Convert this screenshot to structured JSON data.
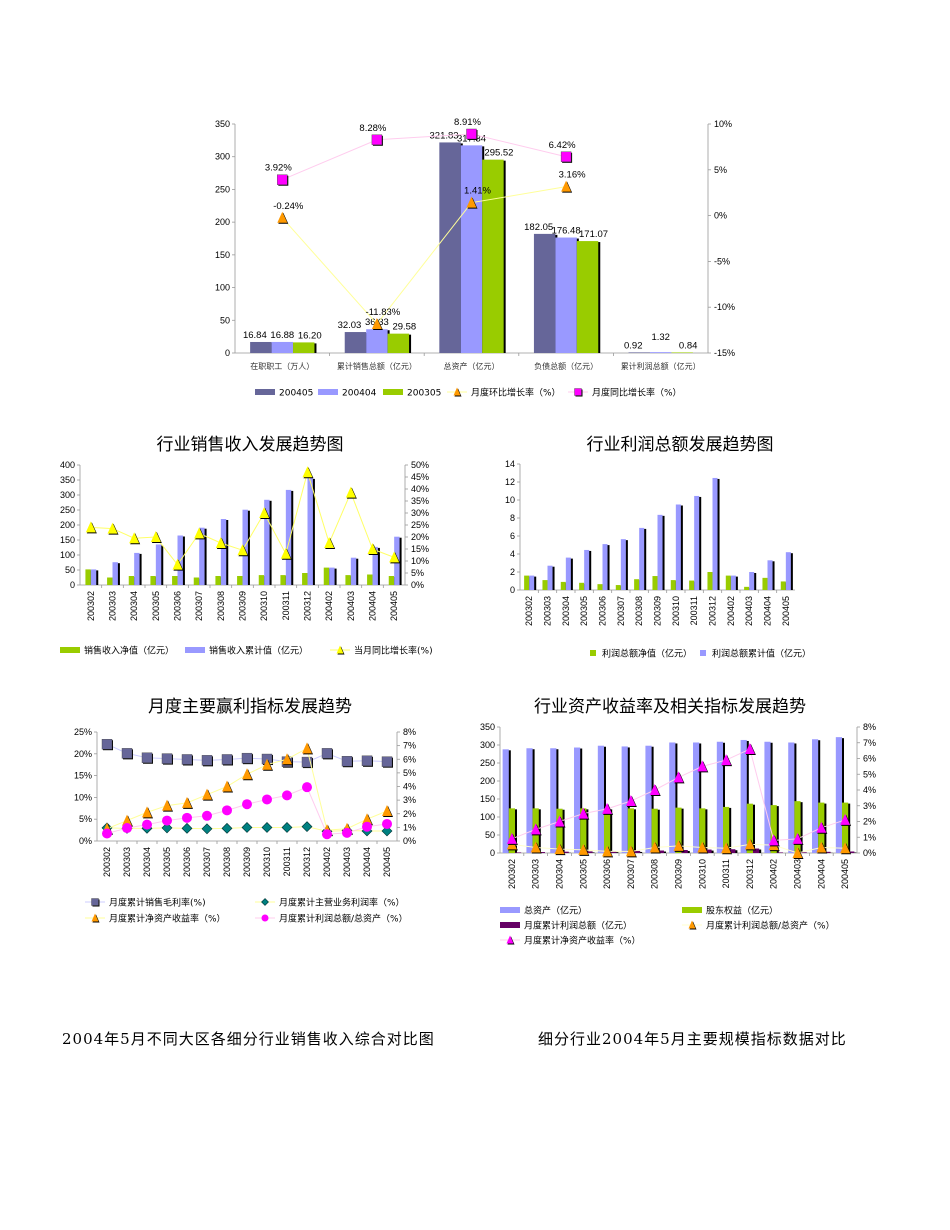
{
  "captions": {
    "left": "2004年5月不同大区各细分行业销售收入综合对比图",
    "right": "细分行业2004年5月主要规模指标数据对比"
  },
  "chart_data": [
    {
      "type": "bar",
      "title": "",
      "categories": [
        "在职职工（万人）",
        "累计销售总额（亿元）",
        "总资产（亿元）",
        "负债总额（亿元）",
        "累计利润总额（亿元）"
      ],
      "ylim": [
        0,
        350
      ],
      "yticks": [
        "0",
        "50",
        "100",
        "150",
        "200",
        "250",
        "300",
        "350"
      ],
      "y2lim": [
        -15,
        10
      ],
      "y2ticks": [
        "-15%",
        "-10%",
        "-5%",
        "0%",
        "5%",
        "10%"
      ],
      "bars": [
        {
          "name": "200405",
          "color": "#666699",
          "values": [
            16.84,
            32.03,
            321.83,
            182.05,
            0.92
          ],
          "labels": [
            "16.84",
            "32.03",
            "321.83",
            "182.05",
            "0.92"
          ]
        },
        {
          "name": "200404",
          "color": "#9999ff",
          "values": [
            16.88,
            36.33,
            317.34,
            176.48,
            1.32
          ],
          "labels": [
            "16.88",
            "36.33",
            "317.34",
            "176.48",
            "1.32"
          ]
        },
        {
          "name": "200305",
          "color": "#99cc00",
          "values": [
            16.2,
            29.58,
            295.52,
            171.07,
            0.84
          ],
          "labels": [
            "16.20",
            "29.58",
            "295.52",
            "171.07",
            "0.84"
          ]
        }
      ],
      "lines": [
        {
          "name": "月度环比增长率（%）",
          "color": "#ff9900",
          "line_color": "#ffff99",
          "marker": "triangle",
          "values": [
            -0.24,
            -11.83,
            1.41,
            3.16,
            null
          ],
          "labels": [
            "-0.24%",
            "-11.83%",
            "1.41%",
            "3.16%",
            ""
          ]
        },
        {
          "name": "月度同比增长率（%）",
          "color": "#ff00ff",
          "line_color": "#ffccee",
          "marker": "square",
          "values": [
            3.92,
            8.28,
            8.91,
            6.42,
            null
          ],
          "labels": [
            "3.92%",
            "8.28%",
            "8.91%",
            "6.42%",
            ""
          ]
        }
      ],
      "legend": "bottom"
    },
    {
      "type": "bar",
      "title": "行业销售收入发展趋势图",
      "categories": [
        "200302",
        "200303",
        "200304",
        "200305",
        "200306",
        "200307",
        "200308",
        "200309",
        "200310",
        "200311",
        "200312",
        "200402",
        "200403",
        "200404",
        "200405"
      ],
      "ylim": [
        0,
        400
      ],
      "yticks": [
        "0",
        "50",
        "100",
        "150",
        "200",
        "250",
        "300",
        "350",
        "400"
      ],
      "y2lim": [
        0,
        50
      ],
      "y2ticks": [
        "0%",
        "5%",
        "10%",
        "15%",
        "20%",
        "25%",
        "30%",
        "35%",
        "40%",
        "45%",
        "50%"
      ],
      "bars": [
        {
          "name": "销售收入净值（亿元）",
          "color": "#99cc00",
          "values": [
            52,
            25,
            30,
            30,
            30,
            25,
            30,
            30,
            33,
            33,
            40,
            58,
            33,
            35,
            30
          ]
        },
        {
          "name": "销售收入累计值（亿元）",
          "color": "#9999ff",
          "values": [
            52,
            76,
            107,
            135,
            165,
            191,
            220,
            251,
            284,
            317,
            357,
            58,
            91,
            127,
            161
          ]
        }
      ],
      "lines": [
        {
          "name": "当月同比增长率(%)",
          "color": "#ffff00",
          "line_color": "#ffff66",
          "marker": "triangle",
          "values": [
            24,
            23.5,
            19.5,
            20,
            8.5,
            21.5,
            17.5,
            14.5,
            30,
            13,
            47,
            17.5,
            38.5,
            15,
            11.5
          ]
        }
      ],
      "legend": "bottom"
    },
    {
      "type": "bar",
      "title": "行业利润总额发展趋势图",
      "categories": [
        "200302",
        "200303",
        "200304",
        "200305",
        "200306",
        "200307",
        "200308",
        "200309",
        "200310",
        "200311",
        "200312",
        "200402",
        "200403",
        "200404",
        "200405"
      ],
      "ylim": [
        0,
        14
      ],
      "yticks": [
        "0",
        "2",
        "4",
        "6",
        "8",
        "10",
        "12",
        "14"
      ],
      "bars": [
        {
          "name": "利润总额净值（亿元）",
          "color": "#99cc00",
          "values": [
            1.6,
            1.1,
            0.9,
            0.8,
            0.65,
            0.55,
            1.2,
            1.55,
            1.1,
            1.05,
            2.0,
            1.6,
            0.35,
            1.35,
            0.95
          ]
        },
        {
          "name": "利润总额累计值（亿元）",
          "color": "#9999ff",
          "values": [
            1.6,
            2.7,
            3.6,
            4.45,
            5.1,
            5.65,
            6.9,
            8.35,
            9.5,
            10.45,
            12.45,
            1.6,
            2.0,
            3.3,
            4.2
          ]
        }
      ],
      "lines": [],
      "legend": "bottom"
    },
    {
      "type": "line",
      "title": "月度主要赢利指标发展趋势",
      "categories": [
        "200302",
        "200303",
        "200304",
        "200305",
        "200306",
        "200307",
        "200308",
        "200309",
        "200310",
        "200311",
        "200312",
        "200402",
        "200403",
        "200404",
        "200405"
      ],
      "ylim": [
        0,
        25
      ],
      "yticks": [
        "0%",
        "5%",
        "10%",
        "15%",
        "20%",
        "25%"
      ],
      "y2lim": [
        0,
        8
      ],
      "y2ticks": [
        "0%",
        "1%",
        "2%",
        "3%",
        "4%",
        "5%",
        "6%",
        "7%",
        "8%"
      ],
      "bars": [],
      "lines": [
        {
          "name": "月度累计销售毛利率(%)",
          "color": "#666699",
          "line_color": "#ccccff",
          "marker": "square",
          "axis": "left",
          "values": [
            22.2,
            20.1,
            19.1,
            18.9,
            18.7,
            18.5,
            18.7,
            19.0,
            18.8,
            18.2,
            18.1,
            20.1,
            18.3,
            18.4,
            18.2
          ]
        },
        {
          "name": "月度累计主营业务利润率（%）",
          "color": "#008080",
          "line_color": "#ffff99",
          "marker": "diamond",
          "axis": "left",
          "values": [
            3.0,
            2.9,
            2.9,
            3.0,
            2.9,
            2.8,
            2.9,
            3.1,
            3.1,
            3.1,
            3.3,
            2.2,
            2.4,
            2.3,
            2.3
          ]
        },
        {
          "name": "月度累计净资产收益率（%）",
          "color": "#ff9900",
          "line_color": "#ffff99",
          "marker": "triangle",
          "axis": "right",
          "values": [
            0.9,
            1.5,
            2.1,
            2.6,
            2.8,
            3.4,
            4.0,
            4.9,
            5.6,
            6.0,
            6.8,
            0.8,
            0.9,
            1.6,
            2.2
          ]
        },
        {
          "name": "月度累计利润总额/总资产（%）",
          "color": "#ff00ff",
          "line_color": "#ffccee",
          "marker": "circle",
          "axis": "right",
          "values": [
            0.55,
            0.95,
            1.2,
            1.5,
            1.7,
            1.85,
            2.25,
            2.7,
            3.05,
            3.35,
            3.95,
            0.5,
            0.6,
            1.05,
            1.25
          ]
        }
      ],
      "legend": "bottom"
    },
    {
      "type": "bar",
      "title": "行业资产收益率及相关指标发展趋势",
      "categories": [
        "200302",
        "200303",
        "200304",
        "200305",
        "200306",
        "200307",
        "200308",
        "200309",
        "200310",
        "200311",
        "200312",
        "200402",
        "200403",
        "200404",
        "200405"
      ],
      "ylim": [
        0,
        350
      ],
      "yticks": [
        "0",
        "50",
        "100",
        "150",
        "200",
        "250",
        "300",
        "350"
      ],
      "y2lim": [
        0,
        8
      ],
      "y2ticks": [
        "0%",
        "1%",
        "2%",
        "3%",
        "4%",
        "5%",
        "6%",
        "7%",
        "8%"
      ],
      "bars": [
        {
          "name": "总资产（亿元）",
          "color": "#9999ff",
          "values": [
            288,
            291,
            291,
            293,
            298,
            296,
            298,
            307,
            307,
            309,
            314,
            309,
            307,
            316,
            321.83
          ]
        },
        {
          "name": "股东权益（亿元）",
          "color": "#99cc00",
          "values": [
            124,
            124,
            123,
            124,
            124,
            124,
            123,
            126,
            124,
            128,
            137,
            133,
            144,
            140,
            140
          ]
        },
        {
          "name": "月度累计利润总额（亿元）",
          "color": "#660066",
          "values": [
            1.6,
            2.7,
            3.6,
            4.45,
            5.1,
            5.65,
            6.9,
            8.35,
            9.5,
            10.45,
            12.45,
            1.6,
            2.0,
            3.3,
            4.2
          ]
        }
      ],
      "lines": [
        {
          "name": "月度累计利润总额/总资产（%）",
          "color": "#ff9900",
          "line_color": "#ffffcc",
          "marker": "triangle",
          "axis": "right",
          "values": [
            0.55,
            0.35,
            0.25,
            0.2,
            0.1,
            0.1,
            0.35,
            0.45,
            0.35,
            0.3,
            0.55,
            0.5,
            0.0,
            0.35,
            0.3
          ]
        },
        {
          "name": "月度累计净资产收益率（%）",
          "color": "#ff00ff",
          "line_color": "#ffccee",
          "marker": "triangle",
          "axis": "right",
          "values": [
            0.9,
            1.5,
            2.0,
            2.5,
            2.8,
            3.3,
            4.0,
            4.8,
            5.5,
            5.9,
            6.6,
            0.8,
            0.9,
            1.6,
            2.1
          ]
        }
      ],
      "legend": "bottom"
    }
  ]
}
